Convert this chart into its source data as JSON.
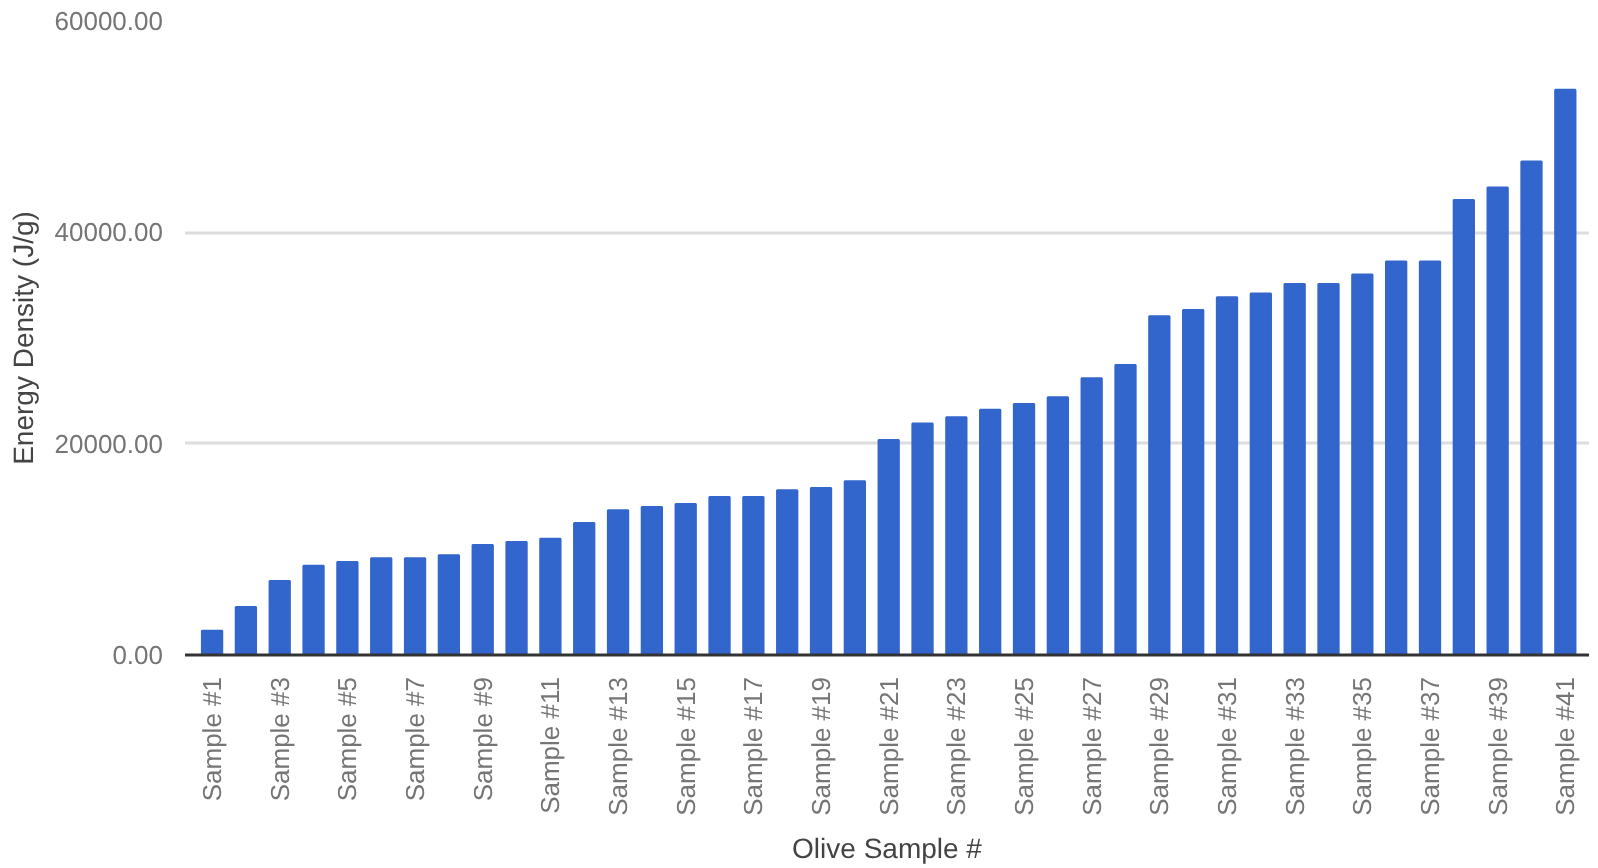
{
  "chart_data": {
    "type": "bar",
    "xlabel": "Olive Sample #",
    "ylabel": "Energy Density (J/g)",
    "categories": [
      "Sample #1",
      null,
      "Sample #3",
      null,
      "Sample #5",
      null,
      "Sample #7",
      null,
      "Sample #9",
      null,
      "Sample #11",
      null,
      "Sample #13",
      null,
      "Sample #15",
      null,
      "Sample #17",
      null,
      "Sample #19",
      null,
      "Sample #21",
      null,
      "Sample #23",
      null,
      "Sample #25",
      null,
      "Sample #27",
      null,
      "Sample #29",
      null,
      "Sample #31",
      null,
      "Sample #33",
      null,
      "Sample #35",
      null,
      "Sample #37",
      null,
      "Sample #39",
      null,
      "Sample #41"
    ],
    "values": [
      2300,
      4550,
      7000,
      8450,
      8800,
      9150,
      9150,
      9450,
      10400,
      10700,
      11000,
      12500,
      13700,
      14000,
      14300,
      14950,
      14950,
      15600,
      15800,
      16450,
      20350,
      21900,
      22500,
      23200,
      23750,
      24400,
      26200,
      27450,
      32050,
      32650,
      33850,
      34200,
      35100,
      35100,
      36000,
      37250,
      37250,
      43050,
      44250,
      46700,
      53500
    ],
    "color": "#3366cc",
    "ylim": [
      0,
      60000
    ],
    "yticks": [
      {
        "value": 0,
        "label": "0.00"
      },
      {
        "value": 20000,
        "label": "20000.00"
      },
      {
        "value": 40000,
        "label": "40000.00"
      },
      {
        "value": 60000,
        "label": "60000.00"
      }
    ],
    "grid": "y"
  }
}
